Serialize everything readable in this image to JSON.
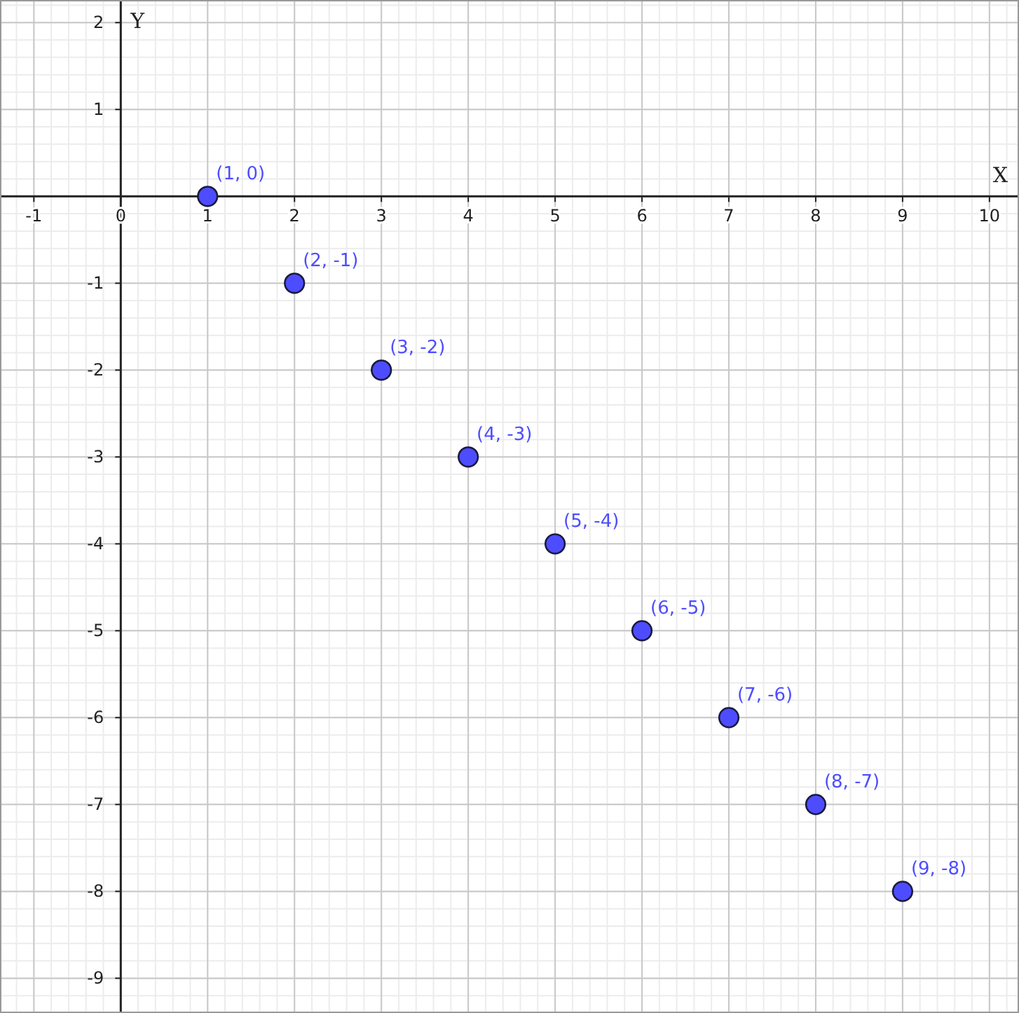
{
  "chart_data": {
    "type": "scatter",
    "xlabel": "X",
    "ylabel": "Y",
    "x": [
      1,
      2,
      3,
      4,
      5,
      6,
      7,
      8,
      9
    ],
    "series": [
      {
        "color": "#4d4dff",
        "values": [
          0,
          -1,
          -2,
          -3,
          -4,
          -5,
          -6,
          -7,
          -8
        ],
        "value_labels": [
          "(1, 0)",
          "(2, -1)",
          "(3, -2)",
          "(4, -3)",
          "(5, -4)",
          "(6, -5)",
          "(7, -6)",
          "(8, -7)",
          "(9, -8)"
        ]
      }
    ],
    "xlim": [
      -1.39,
      10.34
    ],
    "ylim": [
      -9.4,
      2.26
    ],
    "xticks": [
      -1,
      0,
      1,
      2,
      3,
      4,
      5,
      6,
      7,
      8,
      9,
      10
    ],
    "yticks": [
      2,
      1,
      {
        "value": 0,
        "label": null
      },
      -1,
      -2,
      -3,
      -4,
      -5,
      -6,
      -7,
      -8,
      -9
    ],
    "grid": true,
    "marker": "circle"
  }
}
